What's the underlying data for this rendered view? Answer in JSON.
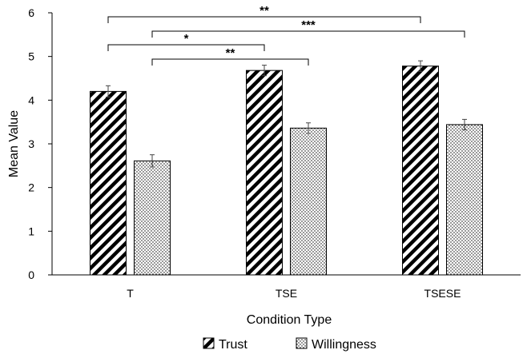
{
  "chart_data": {
    "type": "bar",
    "xlabel": "Condition Type",
    "ylabel": "Mean Value",
    "ylim": [
      0,
      6
    ],
    "yticks": [
      "0",
      "1",
      "2",
      "3",
      "4",
      "5",
      "6"
    ],
    "categories": [
      "T",
      "TSE",
      "TSESE"
    ],
    "series": [
      {
        "name": "Trust",
        "values": [
          4.2,
          4.68,
          4.78
        ],
        "errors": [
          0.13,
          0.12,
          0.12
        ],
        "pattern": "diagonal-stripes"
      },
      {
        "name": "Willingness",
        "values": [
          2.61,
          3.36,
          3.44
        ],
        "errors": [
          0.14,
          0.12,
          0.12
        ],
        "pattern": "dots"
      }
    ],
    "legend": {
      "position": "bottom",
      "entries": [
        "Trust",
        "Willingness"
      ]
    },
    "significance": [
      {
        "from": "T",
        "from_series": "Trust",
        "to": "TSESE",
        "to_series": "Trust",
        "label": "**"
      },
      {
        "from": "T",
        "from_series": "Willingness",
        "to": "TSESE",
        "to_series": "Willingness",
        "label": "***"
      },
      {
        "from": "T",
        "from_series": "Trust",
        "to": "TSE",
        "to_series": "Trust",
        "label": "*"
      },
      {
        "from": "T",
        "from_series": "Willingness",
        "to": "TSE",
        "to_series": "Willingness",
        "label": "**"
      }
    ],
    "grid": false
  }
}
